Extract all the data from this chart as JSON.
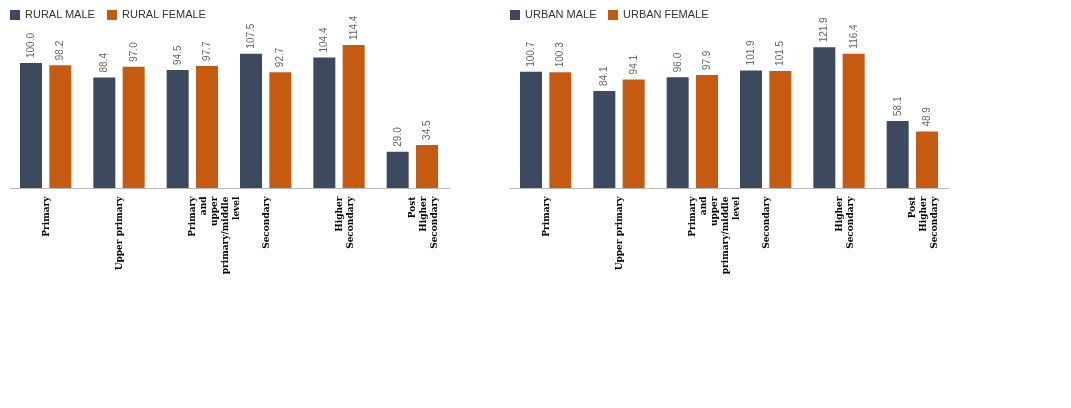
{
  "chart_data": [
    {
      "type": "bar",
      "categories": [
        "Primary",
        "Upper primary",
        "Primary and upper primary/middle level",
        "Secondary",
        "Higher Secondary",
        "Post Higher Secondary"
      ],
      "legend": "top",
      "series": [
        {
          "name": "RURAL MALE",
          "color": "#3d4a5d",
          "values": [
            100.0,
            88.4,
            94.5,
            107.5,
            104.4,
            29.0
          ],
          "value_labels": [
            "100.0",
            "88.4",
            "94.5",
            "107.5",
            "104.4",
            "29.0"
          ]
        },
        {
          "name": "RURAL FEMALE",
          "color": "#c55a11",
          "values": [
            98.2,
            97.0,
            97.7,
            92.7,
            114.4,
            34.5
          ],
          "value_labels": [
            "98.2",
            "97.0",
            "97.7",
            "92.7",
            "114.4",
            "34.5"
          ]
        }
      ]
    },
    {
      "type": "bar",
      "categories": [
        "Primary",
        "Upper primary",
        "Primary and upper primary/middle level",
        "Secondary",
        "Higher Secondary",
        "Post Higher Secondary"
      ],
      "legend": "top",
      "series": [
        {
          "name": "URBAN MALE",
          "color": "#3d4a5d",
          "values": [
            100.7,
            84.1,
            96.0,
            101.9,
            121.9,
            58.1
          ],
          "value_labels": [
            "100.7",
            "84.1",
            "96.0",
            "101.9",
            "121.9",
            "58.1"
          ]
        },
        {
          "name": "URBAN FEMALE",
          "color": "#c55a11",
          "values": [
            100.3,
            94.1,
            97.9,
            101.5,
            116.4,
            48.9
          ],
          "value_labels": [
            "100.3",
            "94.1",
            "97.9",
            "101.5",
            "116.4",
            "48.9"
          ]
        }
      ]
    }
  ]
}
